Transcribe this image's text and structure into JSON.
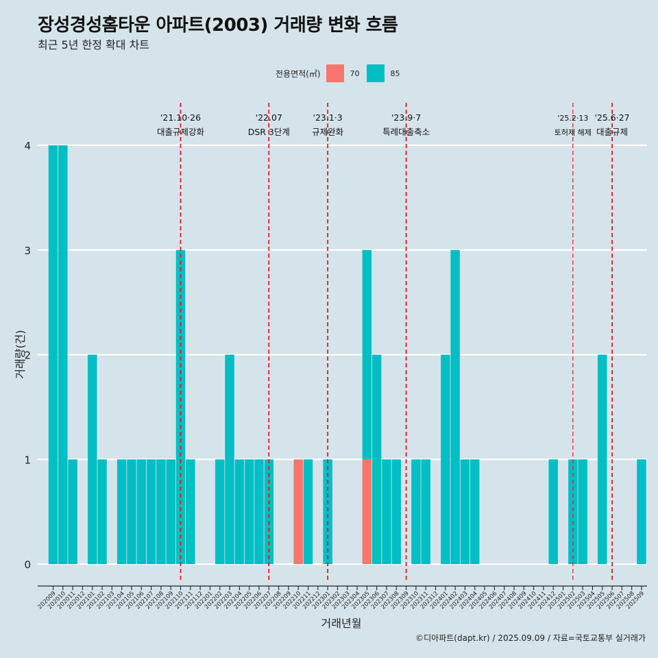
{
  "title": "장성경성홈타운 아파트(2003) 거래량 변화 흐름",
  "subtitle": "최근 5년 한정 확대 차트",
  "legend": {
    "title": "전용면적(㎡)",
    "items": [
      {
        "label": "70",
        "color": "#F8766D"
      },
      {
        "label": "85",
        "color": "#00BFC4"
      }
    ]
  },
  "caption": "©디아파트(dapt.kr) / 2025.09.09 / 자료=국토교통부 실거래가",
  "chart_data": {
    "type": "bar",
    "title": "장성경성홈타운 아파트(2003) 거래량 변화 흐름",
    "subtitle": "최근 5년 한정 확대 차트",
    "xlabel": "거래년월",
    "ylabel": "거래량(건)",
    "ylim": [
      0,
      4
    ],
    "yticks": [
      0,
      1,
      2,
      3,
      4
    ],
    "grid": "horizontal",
    "legend_position": "top",
    "categories": [
      "202009",
      "202010",
      "202011",
      "202012",
      "202101",
      "202102",
      "202103",
      "202104",
      "202105",
      "202106",
      "202107",
      "202108",
      "202109",
      "202110",
      "202111",
      "202112",
      "202201",
      "202202",
      "202203",
      "202204",
      "202205",
      "202206",
      "202207",
      "202208",
      "202209",
      "202210",
      "202211",
      "202212",
      "202301",
      "202302",
      "202303",
      "202304",
      "202305",
      "202306",
      "202307",
      "202308",
      "202309",
      "202310",
      "202311",
      "202312",
      "202401",
      "202402",
      "202403",
      "202404",
      "202405",
      "202406",
      "202407",
      "202408",
      "202409",
      "202410",
      "202411",
      "202412",
      "202501",
      "202502",
      "202503",
      "202504",
      "202505",
      "202506",
      "202507",
      "202508",
      "202509"
    ],
    "tick_labels": [
      "202009",
      "202010",
      "202011",
      "202012",
      "202101",
      "202102",
      "202103",
      "202104",
      "202105",
      "202106",
      "202107",
      "202108",
      "202109",
      "202110",
      "202111",
      "202112",
      "202201",
      "202202",
      "202203",
      "202204",
      "202205",
      "202206",
      "202207",
      "202208",
      "202209",
      "202210",
      "202211",
      "202212",
      "202301",
      "202302",
      "202303",
      "202304",
      "202305",
      "202306",
      "202307",
      "202308",
      "202309",
      "202310",
      "202311",
      "202312",
      "202401",
      "202402",
      "202403",
      "202404",
      "202405",
      "202406",
      "202407",
      "202408",
      "202409",
      "202410",
      "202411",
      "202412",
      "202501",
      "202502",
      "202503",
      "202504",
      "202505",
      "202506",
      "202507",
      "202508",
      "202509"
    ],
    "series": [
      {
        "name": "70",
        "color": "#F8766D",
        "values": [
          0,
          0,
          0,
          0,
          0,
          0,
          0,
          0,
          0,
          0,
          0,
          0,
          0,
          0,
          0,
          0,
          0,
          0,
          0,
          0,
          0,
          0,
          0,
          0,
          0,
          1,
          0,
          0,
          0,
          0,
          0,
          0,
          1,
          0,
          0,
          0,
          0,
          0,
          0,
          0,
          0,
          0,
          0,
          0,
          0,
          0,
          0,
          0,
          0,
          0,
          0,
          0,
          0,
          0,
          0,
          0,
          0,
          0,
          0,
          0,
          0
        ]
      },
      {
        "name": "85",
        "color": "#00BFC4",
        "values": [
          4,
          4,
          1,
          0,
          2,
          1,
          0,
          1,
          1,
          1,
          1,
          1,
          1,
          3,
          1,
          0,
          0,
          1,
          2,
          1,
          1,
          1,
          1,
          0,
          0,
          0,
          1,
          0,
          1,
          0,
          0,
          0,
          2,
          2,
          1,
          1,
          0,
          1,
          1,
          0,
          2,
          3,
          1,
          1,
          0,
          0,
          0,
          0,
          0,
          0,
          0,
          1,
          0,
          1,
          1,
          0,
          2,
          0,
          0,
          0,
          1
        ]
      }
    ],
    "vlines": [
      {
        "x": "202110",
        "label_date": "'21.10·26",
        "label_text": "대출규제강화",
        "small": false
      },
      {
        "x": "202207",
        "label_date": "'22.07",
        "label_text": "DSR 3단계",
        "small": false
      },
      {
        "x": "202301",
        "label_date": "'23.1·3",
        "label_text": "규제완화",
        "small": false
      },
      {
        "x": "202309",
        "label_date": "'23.9·7",
        "label_text": "특례대출축소",
        "small": false
      },
      {
        "x": "202502",
        "label_date": "'25.2·13",
        "label_text": "토허제 해제",
        "small": true
      },
      {
        "x": "202506",
        "label_date": "'25.6·27",
        "label_text": "대출규제",
        "small": false
      }
    ]
  }
}
